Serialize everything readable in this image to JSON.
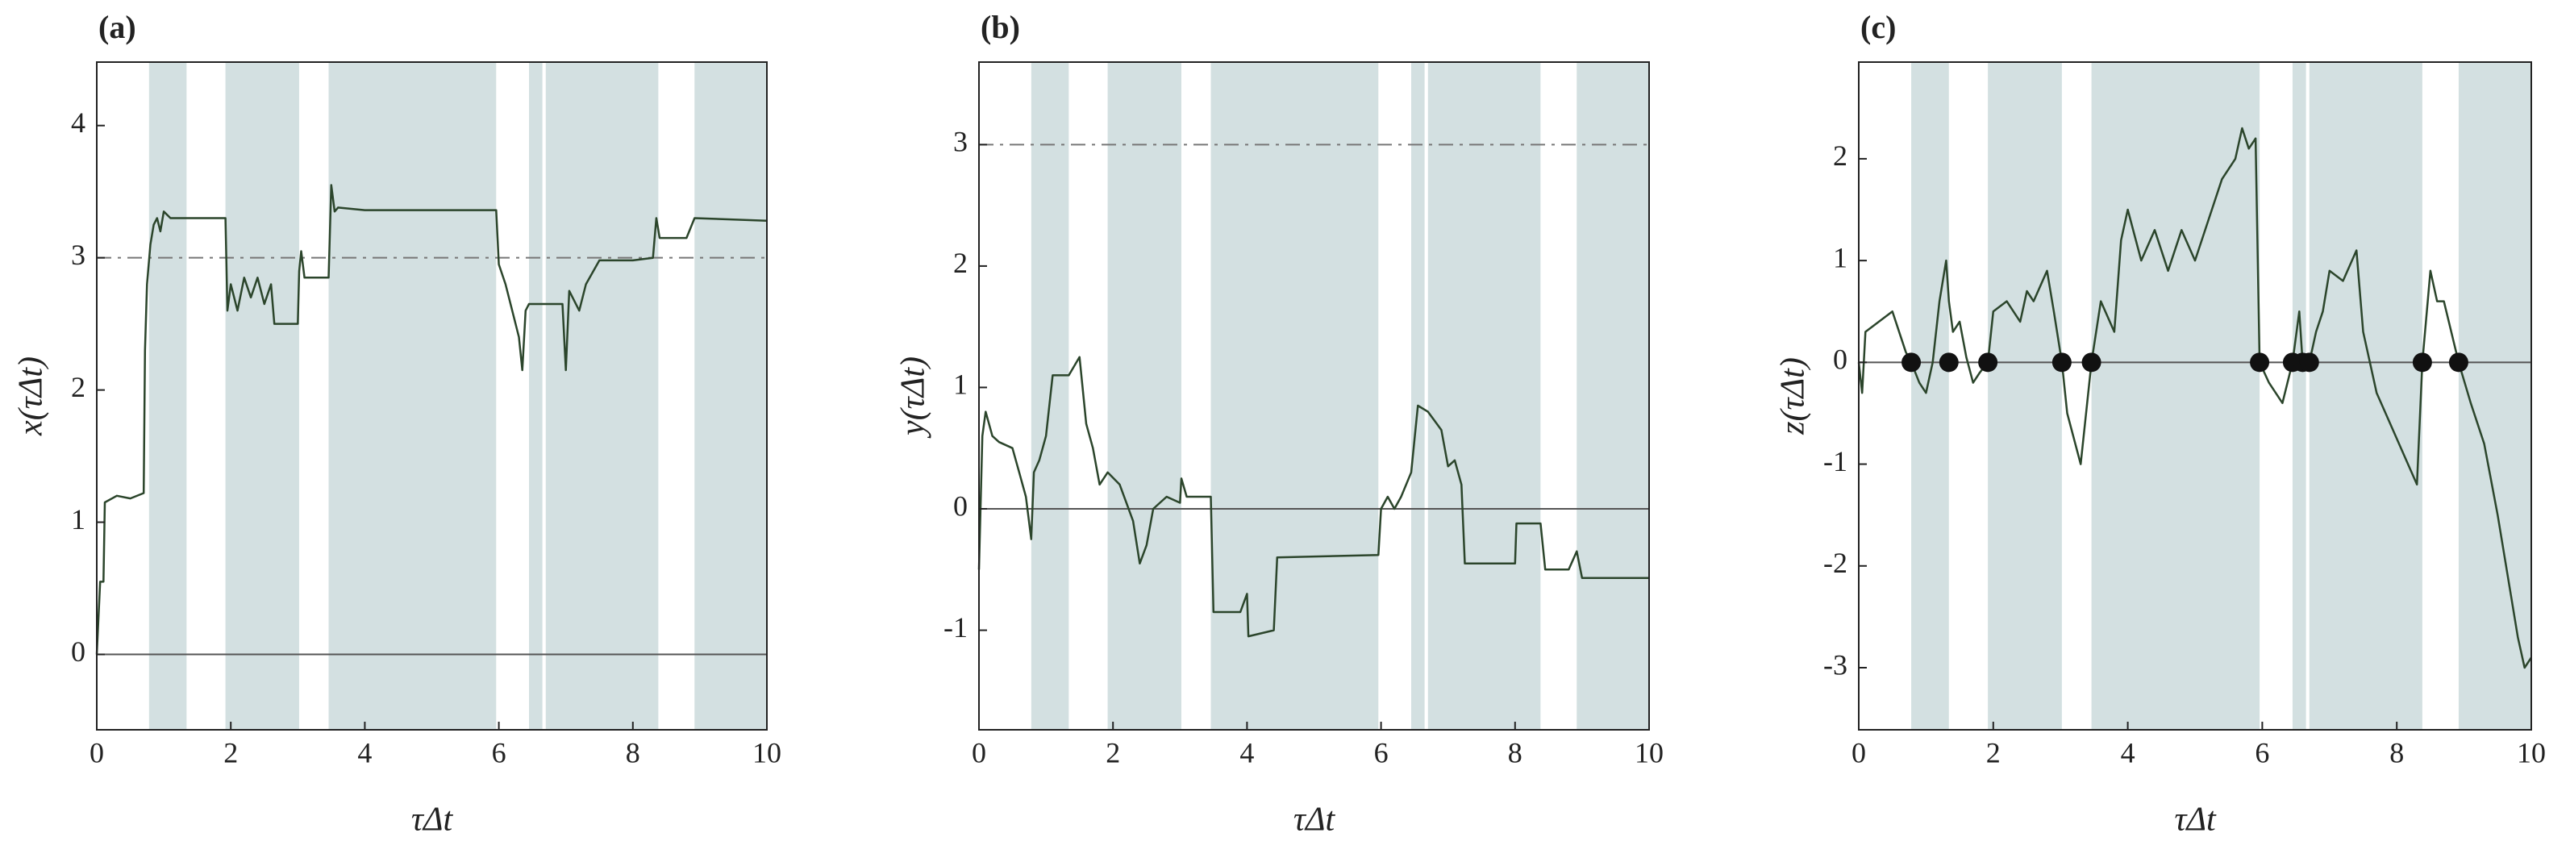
{
  "chart_data": [
    {
      "type": "line",
      "panel_label": "(a)",
      "xlabel": "τΔt",
      "ylabel": "x(τΔt)",
      "xlim": [
        0,
        10
      ],
      "xticks": [
        0,
        2,
        4,
        6,
        8,
        10
      ],
      "ylim": [
        -0.57,
        4.48
      ],
      "yticks": [
        0,
        1,
        2,
        3,
        4
      ],
      "shaded_regions": [
        [
          0.78,
          1.34
        ],
        [
          1.92,
          3.02
        ],
        [
          3.46,
          5.96
        ],
        [
          6.45,
          6.65
        ],
        [
          6.7,
          8.38
        ],
        [
          8.92,
          10
        ]
      ],
      "shade_color": "#d3e0e1",
      "color": "#2b452b",
      "reference_lines": [
        {
          "y": 0,
          "dash": "solid"
        },
        {
          "y": 3,
          "dash": "dashdot"
        }
      ],
      "x": [
        0,
        0.05,
        0.1,
        0.12,
        0.3,
        0.5,
        0.7,
        0.72,
        0.75,
        0.8,
        0.85,
        0.9,
        0.95,
        1.0,
        1.1,
        1.34,
        1.5,
        1.92,
        1.95,
        2.0,
        2.1,
        2.2,
        2.3,
        2.4,
        2.5,
        2.6,
        2.65,
        2.8,
        3.0,
        3.02,
        3.05,
        3.1,
        3.46,
        3.5,
        3.55,
        3.6,
        4.0,
        5.0,
        5.96,
        6.0,
        6.1,
        6.2,
        6.3,
        6.35,
        6.4,
        6.45,
        6.7,
        6.95,
        7.0,
        7.05,
        7.2,
        7.3,
        7.5,
        8.0,
        8.3,
        8.35,
        8.4,
        8.8,
        8.92,
        10
      ],
      "values": [
        0,
        0.55,
        0.55,
        1.15,
        1.2,
        1.18,
        1.22,
        2.3,
        2.8,
        3.1,
        3.25,
        3.3,
        3.2,
        3.35,
        3.3,
        3.3,
        3.3,
        3.3,
        2.6,
        2.8,
        2.6,
        2.85,
        2.7,
        2.85,
        2.65,
        2.8,
        2.5,
        2.5,
        2.5,
        2.9,
        3.05,
        2.85,
        2.85,
        3.55,
        3.35,
        3.38,
        3.36,
        3.36,
        3.36,
        2.95,
        2.8,
        2.6,
        2.4,
        2.15,
        2.6,
        2.65,
        2.65,
        2.65,
        2.15,
        2.75,
        2.6,
        2.8,
        2.98,
        2.98,
        3.0,
        3.3,
        3.15,
        3.15,
        3.3,
        3.28
      ]
    },
    {
      "type": "line",
      "panel_label": "(b)",
      "xlabel": "τΔt",
      "ylabel": "y(τΔt)",
      "xlim": [
        0,
        10
      ],
      "xticks": [
        0,
        2,
        4,
        6,
        8,
        10
      ],
      "ylim": [
        -1.82,
        3.68
      ],
      "yticks": [
        -1,
        0,
        1,
        2,
        3
      ],
      "shaded_regions": [
        [
          0.78,
          1.34
        ],
        [
          1.92,
          3.02
        ],
        [
          3.46,
          5.96
        ],
        [
          6.45,
          6.65
        ],
        [
          6.7,
          8.38
        ],
        [
          8.92,
          10
        ]
      ],
      "shade_color": "#d3e0e1",
      "color": "#2b452b",
      "reference_lines": [
        {
          "y": 0,
          "dash": "solid"
        },
        {
          "y": 3,
          "dash": "dashdot"
        }
      ],
      "x": [
        0,
        0.05,
        0.1,
        0.2,
        0.3,
        0.5,
        0.6,
        0.7,
        0.78,
        0.82,
        0.9,
        1.0,
        1.1,
        1.2,
        1.34,
        1.5,
        1.6,
        1.7,
        1.8,
        1.92,
        2.1,
        2.3,
        2.4,
        2.5,
        2.6,
        2.8,
        3.0,
        3.02,
        3.1,
        3.46,
        3.5,
        3.9,
        4.0,
        4.02,
        4.4,
        4.45,
        5.96,
        6.0,
        6.1,
        6.2,
        6.3,
        6.45,
        6.55,
        6.7,
        6.9,
        7.0,
        7.1,
        7.2,
        7.25,
        8.0,
        8.02,
        8.38,
        8.45,
        8.8,
        8.92,
        9.0,
        10
      ],
      "values": [
        -0.5,
        0.6,
        0.8,
        0.6,
        0.55,
        0.5,
        0.3,
        0.1,
        -0.25,
        0.3,
        0.4,
        0.6,
        1.1,
        1.1,
        1.1,
        1.25,
        0.7,
        0.5,
        0.2,
        0.3,
        0.2,
        -0.1,
        -0.45,
        -0.3,
        0.0,
        0.1,
        0.05,
        0.25,
        0.1,
        0.1,
        -0.85,
        -0.85,
        -0.7,
        -1.05,
        -1.0,
        -0.4,
        -0.38,
        0.0,
        0.1,
        0.0,
        0.1,
        0.3,
        0.85,
        0.8,
        0.65,
        0.35,
        0.4,
        0.2,
        -0.45,
        -0.45,
        -0.12,
        -0.12,
        -0.5,
        -0.5,
        -0.35,
        -0.57,
        -0.57
      ]
    },
    {
      "type": "line",
      "panel_label": "(c)",
      "xlabel": "τΔt",
      "ylabel": "z(τΔt)",
      "xlim": [
        0,
        10
      ],
      "xticks": [
        0,
        2,
        4,
        6,
        8,
        10
      ],
      "ylim": [
        -3.61,
        2.95
      ],
      "yticks": [
        -3,
        -2,
        -1,
        0,
        1,
        2
      ],
      "shaded_regions": [
        [
          0.78,
          1.34
        ],
        [
          1.92,
          3.02
        ],
        [
          3.46,
          5.96
        ],
        [
          6.45,
          6.65
        ],
        [
          6.7,
          8.38
        ],
        [
          8.92,
          10
        ]
      ],
      "shade_color": "#d3e0e1",
      "color": "#2b452b",
      "reference_lines": [
        {
          "y": 0,
          "dash": "solid"
        }
      ],
      "zero_crossings": [
        0.78,
        1.34,
        1.92,
        3.02,
        3.46,
        5.96,
        6.45,
        6.6,
        6.7,
        8.38,
        8.92
      ],
      "x": [
        0,
        0.05,
        0.1,
        0.3,
        0.5,
        0.7,
        0.78,
        0.9,
        1.0,
        1.1,
        1.2,
        1.3,
        1.34,
        1.4,
        1.5,
        1.6,
        1.7,
        1.8,
        1.92,
        2.0,
        2.2,
        2.4,
        2.5,
        2.6,
        2.8,
        2.9,
        3.02,
        3.1,
        3.3,
        3.46,
        3.6,
        3.8,
        3.9,
        4.0,
        4.2,
        4.4,
        4.6,
        4.8,
        5.0,
        5.2,
        5.4,
        5.6,
        5.7,
        5.8,
        5.9,
        5.96,
        6.1,
        6.3,
        6.45,
        6.55,
        6.6,
        6.7,
        6.8,
        6.9,
        7.0,
        7.2,
        7.4,
        7.5,
        7.7,
        7.9,
        8.1,
        8.3,
        8.38,
        8.5,
        8.6,
        8.7,
        8.92,
        9.1,
        9.3,
        9.5,
        9.7,
        9.8,
        9.9,
        10
      ],
      "values": [
        0.0,
        -0.3,
        0.3,
        0.4,
        0.5,
        0.1,
        0,
        -0.2,
        -0.3,
        0.0,
        0.6,
        1.0,
        0.6,
        0.3,
        0.4,
        0.05,
        -0.2,
        -0.1,
        0.0,
        0.5,
        0.6,
        0.4,
        0.7,
        0.6,
        0.9,
        0.5,
        0.0,
        -0.5,
        -1.0,
        0.0,
        0.6,
        0.3,
        1.2,
        1.5,
        1.0,
        1.3,
        0.9,
        1.3,
        1.0,
        1.4,
        1.8,
        2.0,
        2.3,
        2.1,
        2.2,
        0.0,
        -0.2,
        -0.4,
        0.0,
        0.5,
        0.0,
        0.0,
        0.3,
        0.5,
        0.9,
        0.8,
        1.1,
        0.3,
        -0.3,
        -0.6,
        -0.9,
        -1.2,
        0.0,
        0.9,
        0.6,
        0.6,
        0.0,
        -0.4,
        -0.8,
        -1.5,
        -2.3,
        -2.7,
        -3.0,
        -2.9
      ]
    }
  ]
}
